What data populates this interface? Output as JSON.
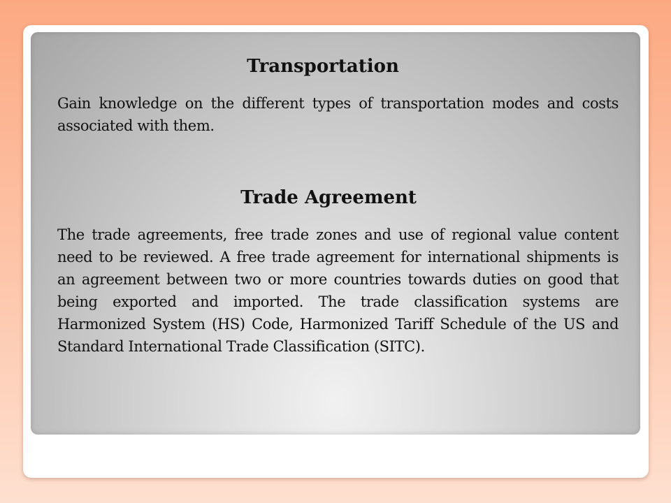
{
  "slide": {
    "sections": [
      {
        "heading": "Transportation",
        "body": "Gain knowledge on the different types of transportation modes and costs associated with them."
      },
      {
        "heading": "Trade Agreement",
        "body": "The trade agreements, free trade zones and use of regional value content need to be reviewed. A free trade agreement for international shipments is an agreement between two or more countries towards duties on good that being exported and imported.  The trade classification systems are Harmonized System (HS) Code, Harmonized Tariff Schedule of the US and Standard International Trade Classification (SITC)."
      }
    ]
  },
  "colors": {
    "background_top": "#fca982",
    "background_bottom": "#fee0d0",
    "frame": "#ffffff",
    "panel_light": "#f1f1f1",
    "panel_dark": "#a6a6a6",
    "text": "#111111"
  }
}
